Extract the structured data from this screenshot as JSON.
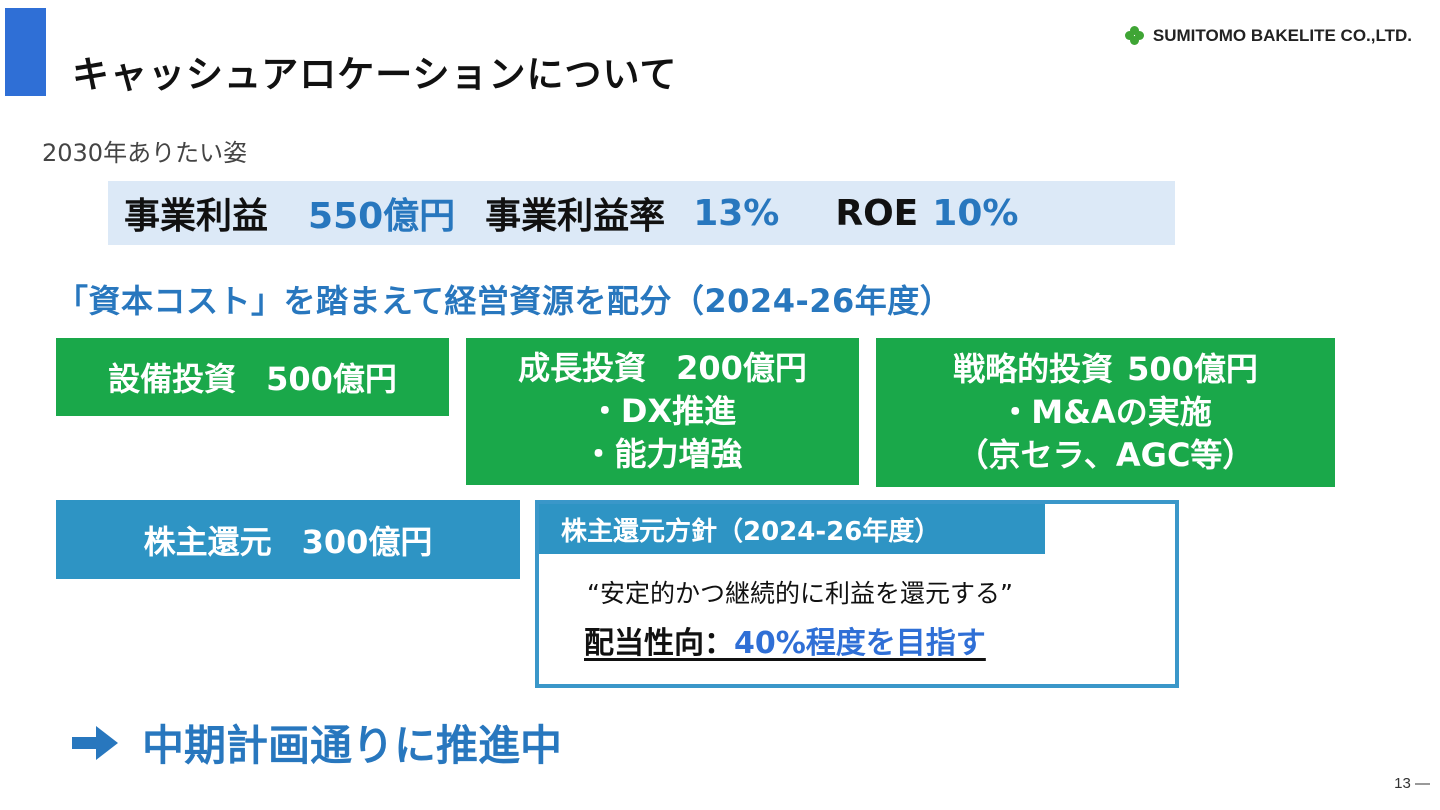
{
  "header": {
    "title": "キャッシュアロケーションについて",
    "company": "SUMITOMO BAKELITE CO.,LTD.",
    "logo_icon": "four-leaf-logo-icon",
    "accent_color": "#2f6fd6"
  },
  "vision": {
    "subtitle": "2030年ありたい姿",
    "targets": [
      {
        "label": "事業利益",
        "value": "550億円"
      },
      {
        "label": "事業利益率",
        "value": "13%"
      },
      {
        "label": "ROE",
        "value": "10%"
      }
    ]
  },
  "allocation": {
    "heading": "「資本コスト」を踏まえて経営資源を配分（2024-26年度）",
    "capex": {
      "label": "設備投資",
      "amount": "500億円"
    },
    "growth": {
      "label": "成長投資",
      "amount": "200億円",
      "items": [
        "・DX推進",
        "・能力増強"
      ]
    },
    "strategic": {
      "label": "戦略的投資",
      "amount": "500億円",
      "items": [
        "・M&Aの実施",
        "（京セラ、AGC等）"
      ]
    },
    "returns": {
      "label": "株主還元",
      "amount": "300億円"
    }
  },
  "policy": {
    "title": "株主還元方針（2024-26年度）",
    "quote": "“安定的かつ継続的に利益を還元する”",
    "target_label": "配当性向：",
    "target_value": "40%程度を目指す"
  },
  "conclusion": {
    "text": "中期計画通りに推進中",
    "icon": "right-arrow-icon"
  },
  "page_number": "13 —",
  "colors": {
    "green": "#1aa84a",
    "blue": "#2e94c4",
    "text_blue": "#2877be",
    "band": "#dce9f7"
  }
}
